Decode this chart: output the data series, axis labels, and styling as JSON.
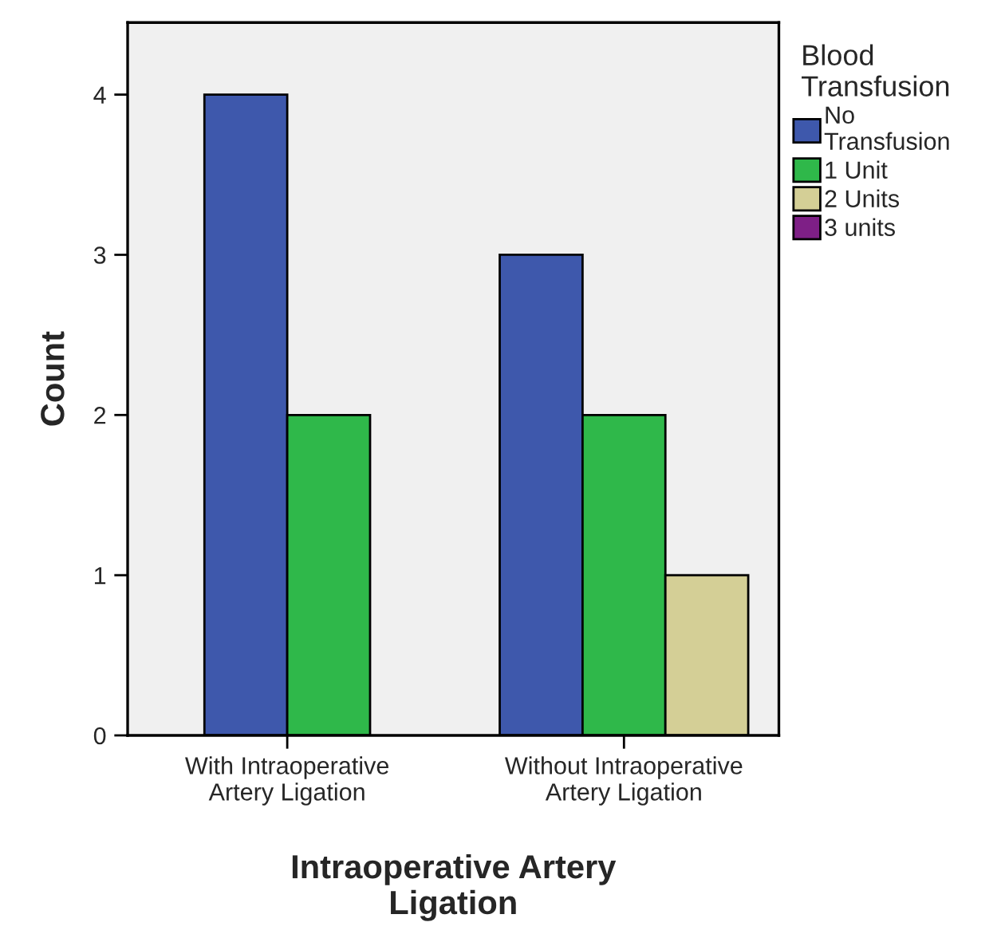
{
  "chart_data": {
    "type": "bar",
    "xlabel": "Intraoperative Artery\nLigation",
    "ylabel": "Count",
    "legend_title": "Blood\nTransfusion",
    "categories": [
      "With Intraoperative\nArtery Ligation",
      "Without Intraoperative\nArtery Ligation"
    ],
    "series": [
      {
        "name": "No\nTransfusion",
        "color": "#3e58ac",
        "values": [
          4,
          3
        ]
      },
      {
        "name": "1 Unit",
        "color": "#2fb84a",
        "values": [
          2,
          2
        ]
      },
      {
        "name": "2 Units",
        "color": "#d4cf96",
        "values": [
          null,
          1
        ]
      },
      {
        "name": "3 units",
        "color": "#7e1f86",
        "values": [
          null,
          null
        ]
      }
    ],
    "ylim": [
      0,
      4.45
    ],
    "yticks": [
      0,
      1,
      2,
      3,
      4
    ],
    "grid": false,
    "legend": "top right"
  }
}
